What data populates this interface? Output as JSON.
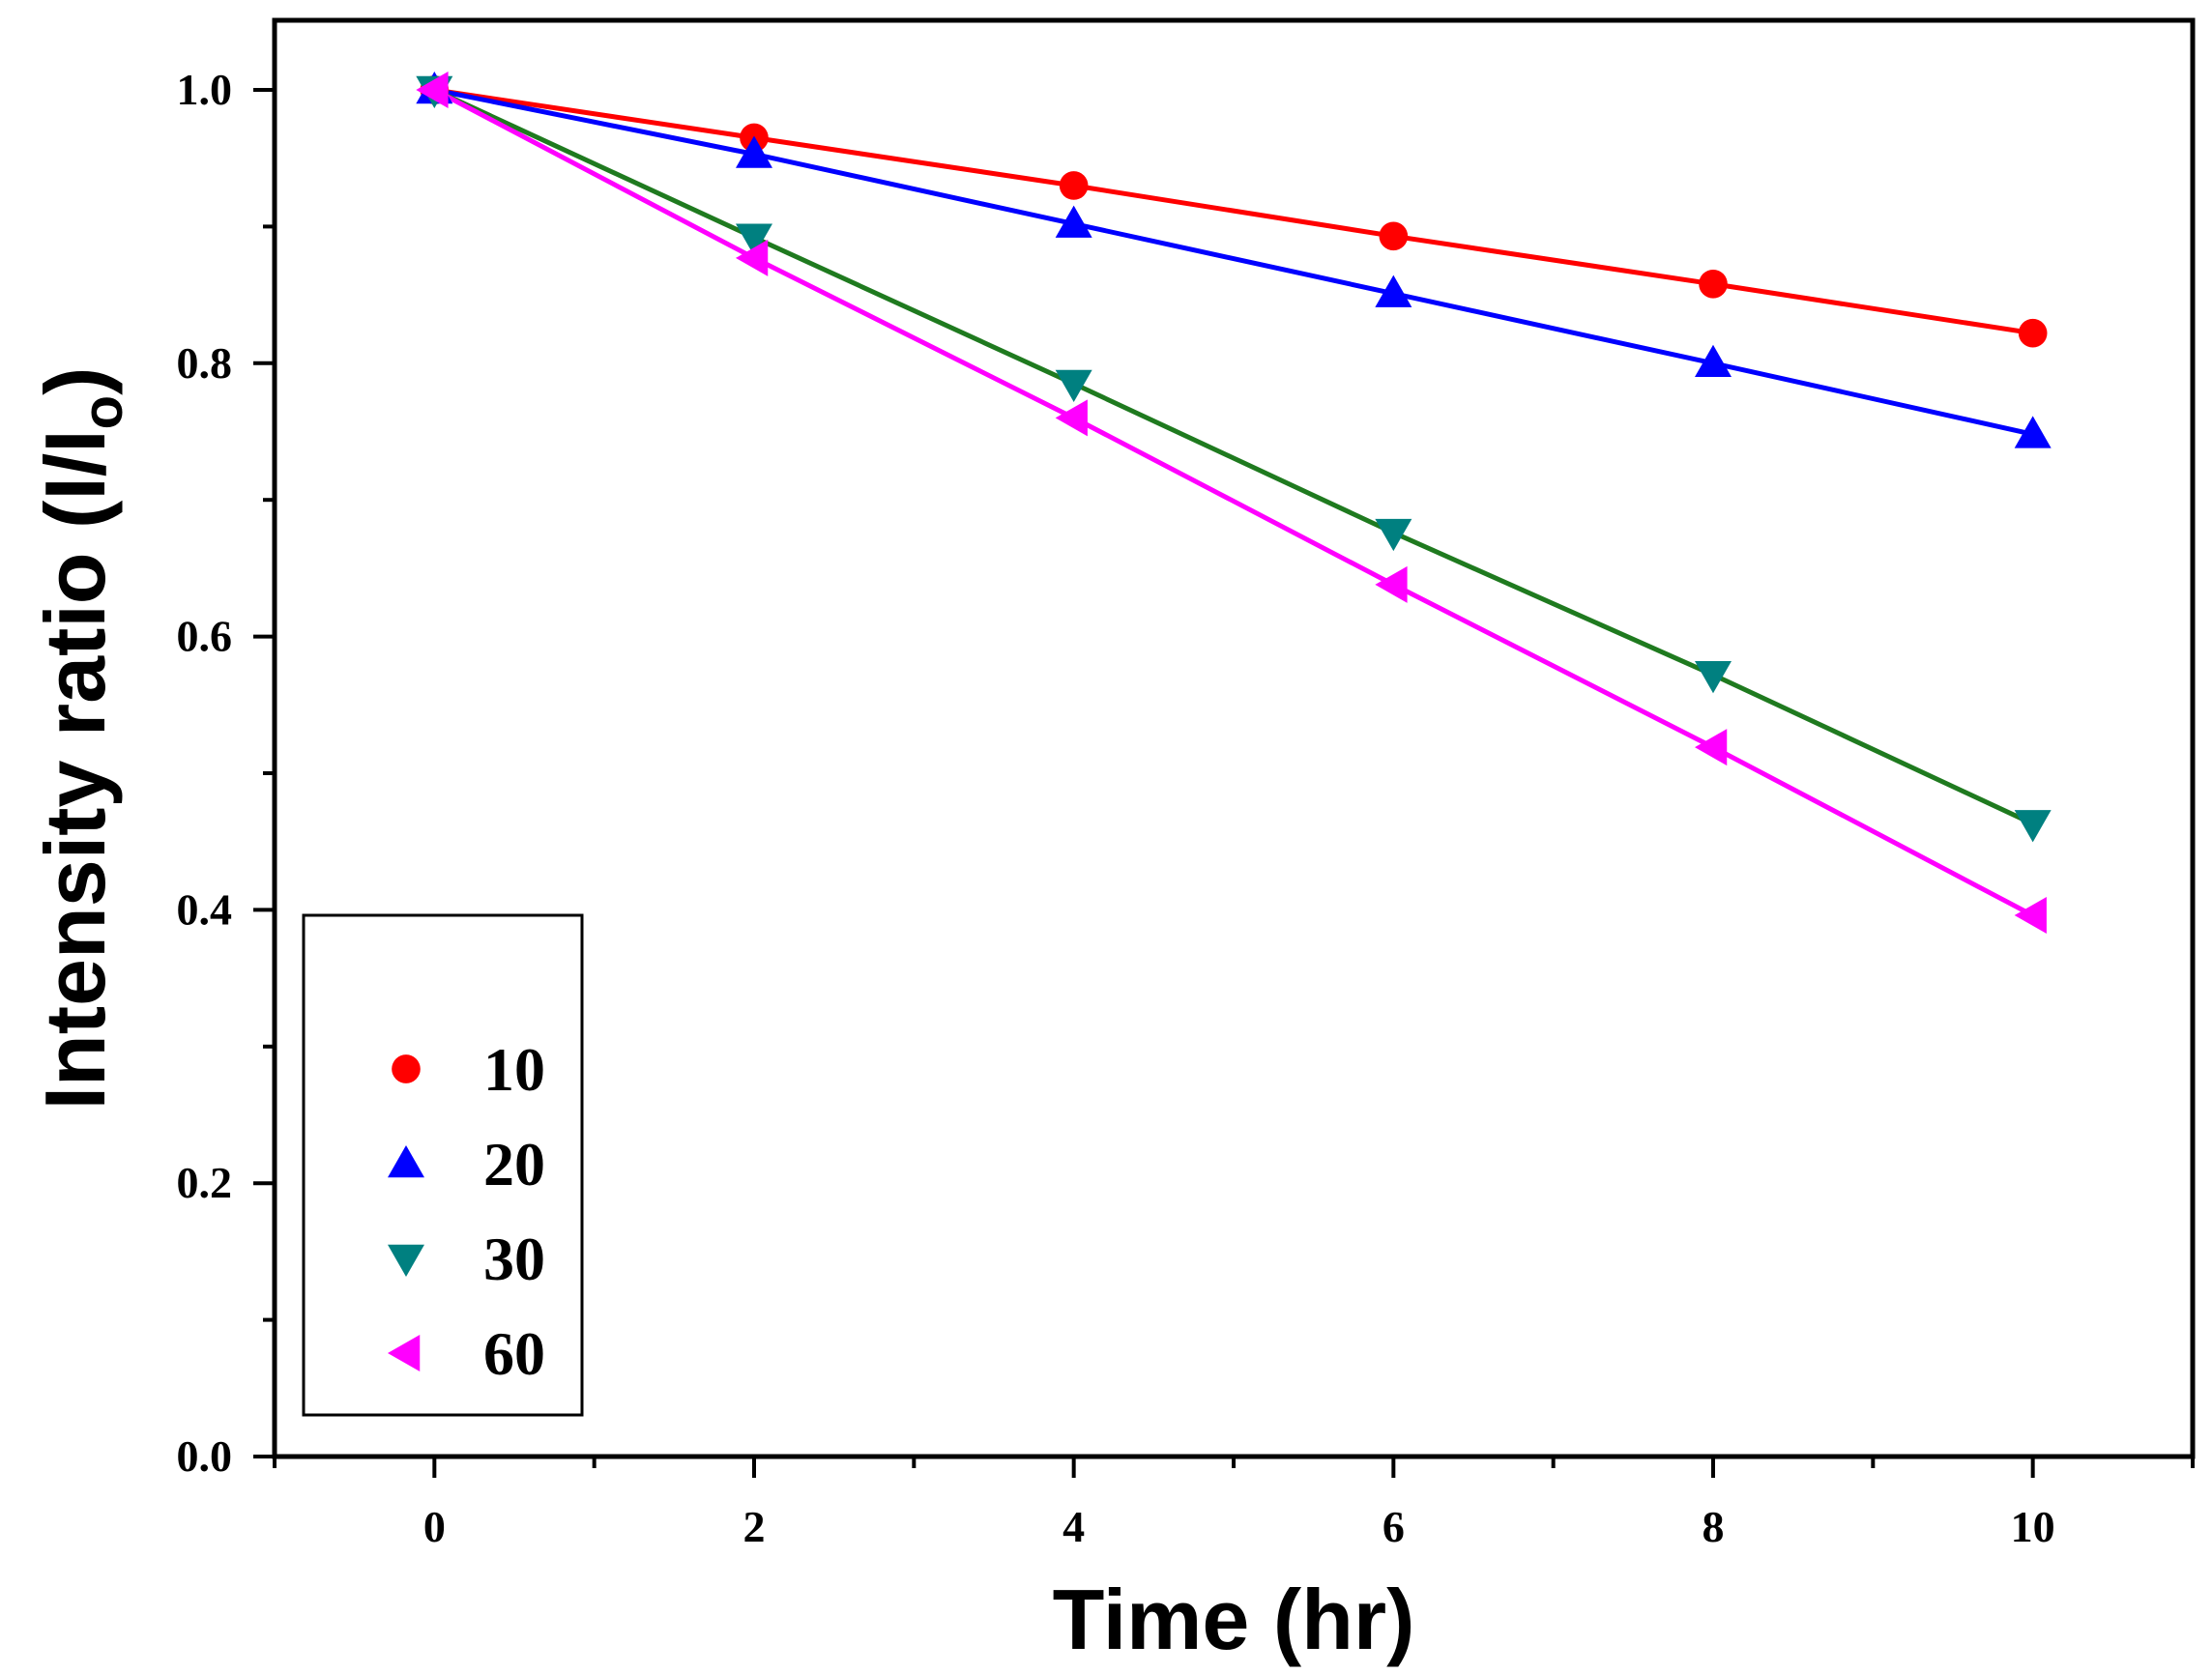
{
  "chart_data": {
    "type": "line",
    "title": "",
    "xlabel": "Time (hr)",
    "ylabel_main": "Intensity ratio (I/I",
    "ylabel_sub": "o",
    "ylabel_close": ")",
    "xlim": [
      -1,
      11
    ],
    "ylim": [
      0,
      1.05
    ],
    "x_ticks": [
      0,
      2,
      4,
      6,
      8,
      10
    ],
    "x_tick_labels": [
      "0",
      "2",
      "4",
      "6",
      "8",
      "10"
    ],
    "y_ticks": [
      0.0,
      0.2,
      0.4,
      0.6,
      0.8,
      1.0
    ],
    "y_tick_labels": [
      "0.0",
      "0.2",
      "0.4",
      "0.6",
      "0.8",
      "1.0"
    ],
    "x_minor_ticks": [
      -1,
      1,
      3,
      5,
      7,
      9,
      11
    ],
    "y_minor_ticks": [
      0.1,
      0.3,
      0.5,
      0.7,
      0.9
    ],
    "grid": false,
    "legend_position": "bottom-left",
    "x": [
      0,
      2,
      4,
      6,
      8,
      10
    ],
    "series": [
      {
        "name": "10",
        "marker": "circle",
        "color": "#ff0000",
        "line_color": "#ff0000",
        "values": [
          1.0,
          0.965,
          0.93,
          0.893,
          0.858,
          0.822
        ]
      },
      {
        "name": "20",
        "marker": "triangle-up",
        "color": "#0000ff",
        "line_color": "#0000ff",
        "values": [
          1.0,
          0.953,
          0.902,
          0.851,
          0.8,
          0.748
        ]
      },
      {
        "name": "30",
        "marker": "triangle-down",
        "color": "#008080",
        "line_color": "#1f7a1f",
        "values": [
          1.0,
          0.892,
          0.785,
          0.676,
          0.572,
          0.463
        ]
      },
      {
        "name": "60",
        "marker": "triangle-left",
        "color": "#ff00ff",
        "line_color": "#ff00ff",
        "values": [
          1.0,
          0.877,
          0.76,
          0.638,
          0.519,
          0.396
        ]
      }
    ]
  }
}
